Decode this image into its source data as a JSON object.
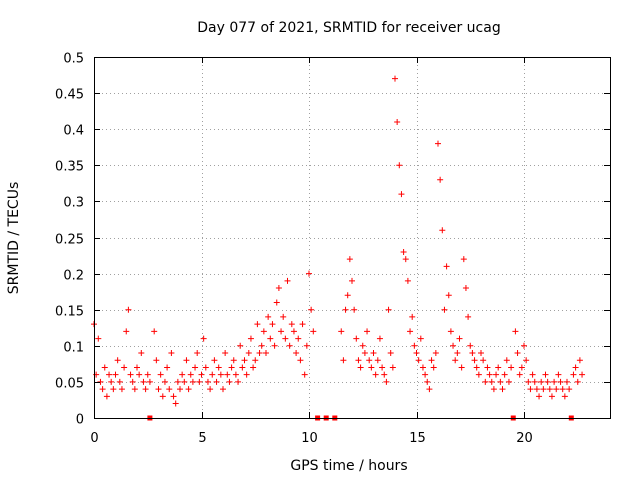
{
  "chart_data": {
    "type": "scatter",
    "title": "Day 077 of 2021, SRMTID for receiver ucag",
    "xlabel": "GPS time / hours",
    "ylabel": "SRMTID / TECUs",
    "xlim": [
      0,
      24
    ],
    "ylim": [
      0,
      0.5
    ],
    "xticks": [
      0,
      5,
      10,
      15,
      20
    ],
    "xtick_labels": [
      "0",
      "5",
      "10",
      "15",
      "20"
    ],
    "yticks": [
      0,
      0.05,
      0.1,
      0.15,
      0.2,
      0.25,
      0.3,
      0.35,
      0.4,
      0.45,
      0.5
    ],
    "ytick_labels": [
      "0",
      "0.05",
      "0.1",
      "0.15",
      "0.2",
      "0.25",
      "0.3",
      "0.35",
      "0.4",
      "0.45",
      "0.5"
    ],
    "grid": true,
    "marker_color": "#ff0000",
    "series": [
      {
        "name": "SRMTID",
        "x": [
          0.0,
          0.1,
          0.2,
          0.3,
          0.4,
          0.5,
          0.6,
          0.7,
          0.8,
          0.9,
          1.0,
          1.1,
          1.2,
          1.3,
          1.4,
          1.5,
          1.6,
          1.7,
          1.8,
          1.9,
          2.0,
          2.1,
          2.2,
          2.3,
          2.4,
          2.5,
          2.6,
          2.8,
          2.9,
          3.0,
          3.1,
          3.2,
          3.3,
          3.4,
          3.5,
          3.6,
          3.7,
          3.8,
          3.9,
          4.0,
          4.1,
          4.2,
          4.3,
          4.4,
          4.5,
          4.6,
          4.7,
          4.8,
          4.9,
          5.0,
          5.1,
          5.2,
          5.3,
          5.4,
          5.5,
          5.6,
          5.7,
          5.8,
          5.9,
          6.0,
          6.1,
          6.2,
          6.3,
          6.4,
          6.5,
          6.6,
          6.7,
          6.8,
          6.9,
          7.0,
          7.1,
          7.2,
          7.3,
          7.4,
          7.5,
          7.6,
          7.7,
          7.8,
          7.9,
          8.0,
          8.1,
          8.2,
          8.3,
          8.4,
          8.5,
          8.6,
          8.7,
          8.8,
          8.9,
          9.0,
          9.1,
          9.2,
          9.3,
          9.4,
          9.5,
          9.6,
          9.7,
          9.8,
          9.9,
          10.0,
          10.1,
          10.2,
          11.5,
          11.6,
          11.7,
          11.8,
          11.9,
          12.0,
          12.1,
          12.2,
          12.3,
          12.4,
          12.5,
          12.6,
          12.7,
          12.8,
          12.9,
          13.0,
          13.1,
          13.2,
          13.3,
          13.4,
          13.5,
          13.6,
          13.7,
          13.8,
          13.9,
          14.0,
          14.1,
          14.2,
          14.3,
          14.4,
          14.5,
          14.6,
          14.7,
          14.8,
          14.9,
          15.0,
          15.1,
          15.2,
          15.3,
          15.4,
          15.5,
          15.6,
          15.7,
          15.8,
          15.9,
          16.0,
          16.1,
          16.2,
          16.3,
          16.4,
          16.5,
          16.6,
          16.7,
          16.8,
          16.9,
          17.0,
          17.1,
          17.2,
          17.3,
          17.4,
          17.5,
          17.6,
          17.7,
          17.8,
          17.9,
          18.0,
          18.1,
          18.2,
          18.3,
          18.4,
          18.5,
          18.6,
          18.7,
          18.8,
          18.9,
          19.0,
          19.1,
          19.2,
          19.3,
          19.4,
          19.6,
          19.7,
          19.8,
          19.9,
          20.0,
          20.1,
          20.2,
          20.3,
          20.4,
          20.5,
          20.6,
          20.7,
          20.8,
          20.9,
          21.0,
          21.1,
          21.2,
          21.3,
          21.4,
          21.5,
          21.6,
          21.7,
          21.8,
          21.9,
          22.0,
          22.1,
          22.3,
          22.4,
          22.5,
          22.6,
          22.7
        ],
        "y": [
          0.13,
          0.06,
          0.11,
          0.05,
          0.04,
          0.07,
          0.03,
          0.06,
          0.05,
          0.04,
          0.06,
          0.08,
          0.05,
          0.04,
          0.07,
          0.12,
          0.15,
          0.06,
          0.05,
          0.04,
          0.07,
          0.06,
          0.09,
          0.05,
          0.04,
          0.06,
          0.05,
          0.12,
          0.08,
          0.04,
          0.06,
          0.03,
          0.05,
          0.07,
          0.04,
          0.09,
          0.03,
          0.02,
          0.05,
          0.04,
          0.06,
          0.05,
          0.08,
          0.04,
          0.06,
          0.05,
          0.07,
          0.09,
          0.05,
          0.06,
          0.11,
          0.07,
          0.05,
          0.04,
          0.06,
          0.08,
          0.05,
          0.07,
          0.06,
          0.04,
          0.09,
          0.06,
          0.05,
          0.07,
          0.08,
          0.06,
          0.05,
          0.1,
          0.07,
          0.08,
          0.06,
          0.09,
          0.11,
          0.07,
          0.08,
          0.13,
          0.09,
          0.1,
          0.12,
          0.09,
          0.14,
          0.11,
          0.13,
          0.1,
          0.16,
          0.18,
          0.12,
          0.14,
          0.11,
          0.19,
          0.1,
          0.13,
          0.12,
          0.09,
          0.11,
          0.08,
          0.13,
          0.06,
          0.1,
          0.2,
          0.15,
          0.12,
          0.12,
          0.08,
          0.15,
          0.17,
          0.22,
          0.19,
          0.15,
          0.11,
          0.08,
          0.07,
          0.1,
          0.09,
          0.12,
          0.08,
          0.07,
          0.09,
          0.06,
          0.08,
          0.11,
          0.07,
          0.06,
          0.05,
          0.15,
          0.09,
          0.07,
          0.47,
          0.41,
          0.35,
          0.31,
          0.23,
          0.22,
          0.19,
          0.12,
          0.14,
          0.1,
          0.09,
          0.08,
          0.11,
          0.07,
          0.06,
          0.05,
          0.04,
          0.08,
          0.07,
          0.09,
          0.38,
          0.33,
          0.26,
          0.15,
          0.21,
          0.17,
          0.12,
          0.1,
          0.08,
          0.09,
          0.11,
          0.07,
          0.22,
          0.18,
          0.14,
          0.1,
          0.09,
          0.08,
          0.07,
          0.06,
          0.09,
          0.08,
          0.05,
          0.07,
          0.06,
          0.05,
          0.04,
          0.06,
          0.07,
          0.05,
          0.04,
          0.06,
          0.08,
          0.05,
          0.07,
          0.12,
          0.09,
          0.06,
          0.07,
          0.1,
          0.08,
          0.05,
          0.04,
          0.06,
          0.05,
          0.04,
          0.03,
          0.05,
          0.04,
          0.06,
          0.05,
          0.04,
          0.03,
          0.05,
          0.04,
          0.06,
          0.05,
          0.04,
          0.03,
          0.05,
          0.04,
          0.06,
          0.07,
          0.05,
          0.08,
          0.06
        ]
      }
    ],
    "gap_markers_x": [
      2.6,
      10.4,
      10.8,
      11.2,
      19.5,
      22.2
    ]
  }
}
